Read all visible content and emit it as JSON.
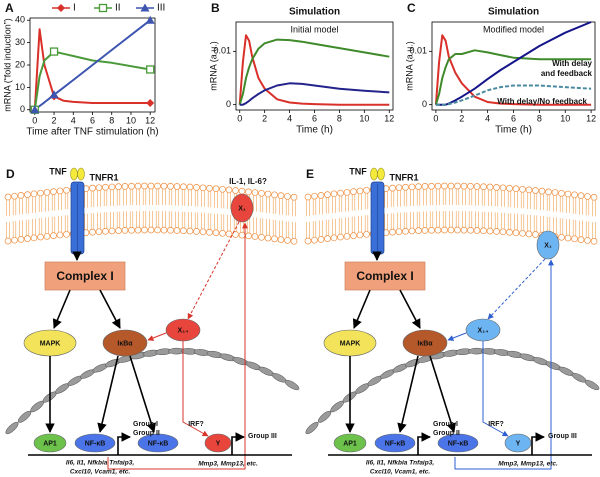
{
  "chart_data": [
    {
      "type": "line",
      "panel": "A",
      "ylabel": "mRNA (“fold induction”)",
      "xlabel": "Time after TNF stimulation (h)",
      "x": [
        0,
        0.5,
        1,
        2,
        3,
        4,
        6,
        8,
        12
      ],
      "series": [
        {
          "name": "I",
          "color": "#d9302a",
          "marker": "diamond",
          "values": [
            0,
            36,
            20,
            6,
            4,
            3.5,
            3,
            3,
            3
          ]
        },
        {
          "name": "II",
          "color": "#4a9a3a",
          "marker": "square-open",
          "values": [
            0,
            15,
            22,
            26,
            25,
            24,
            22,
            21,
            18
          ]
        },
        {
          "name": "III",
          "color": "#3d55b0",
          "marker": "triangle",
          "values": [
            0,
            1.7,
            3.3,
            6.7,
            10,
            13.3,
            20,
            26.7,
            40
          ]
        }
      ],
      "xlim": [
        -0.5,
        12.5
      ],
      "xticks": [
        0,
        2,
        4,
        6,
        8,
        10,
        12
      ],
      "ylim": [
        -1,
        41
      ],
      "yticks": [
        0,
        10,
        20,
        30,
        40
      ]
    },
    {
      "type": "line",
      "panel": "B",
      "title": "Simulation",
      "subtitle": "Initial model",
      "ylabel": "mRNA (a.u.)",
      "xlabel": "Time (h)",
      "x": [
        0,
        0.25,
        0.5,
        0.75,
        1,
        1.5,
        2,
        3,
        4,
        5,
        6,
        8,
        10,
        12
      ],
      "series": [
        {
          "color": "#d9302a",
          "values": [
            0,
            0.008,
            0.013,
            0.012,
            0.009,
            0.005,
            0.003,
            0.001,
            0.0004,
            0.0002,
            0.0001,
            0,
            0,
            0
          ]
        },
        {
          "color": "#3f8a2a",
          "values": [
            0,
            0.002,
            0.005,
            0.007,
            0.0085,
            0.0105,
            0.0115,
            0.0122,
            0.0121,
            0.0118,
            0.0114,
            0.0106,
            0.0098,
            0.009
          ]
        },
        {
          "color": "#23238c",
          "values": [
            0,
            0,
            0.0003,
            0.0007,
            0.0012,
            0.002,
            0.0027,
            0.0036,
            0.004,
            0.0039,
            0.0036,
            0.003,
            0.0026,
            0.0023
          ]
        }
      ],
      "xlim": [
        -0.3,
        12.3
      ],
      "xticks": [
        0,
        2,
        4,
        6,
        8,
        10,
        12
      ],
      "ylim": [
        -0.001,
        0.0155
      ],
      "yticks": [
        0,
        0.01
      ]
    },
    {
      "type": "line",
      "panel": "C",
      "title": "Simulation",
      "subtitle": "Modified model",
      "ylabel": "mRNA (a.u.)",
      "xlabel": "Time (h)",
      "x": [
        0,
        0.25,
        0.5,
        0.75,
        1,
        1.5,
        2,
        3,
        4,
        5,
        6,
        8,
        10,
        12
      ],
      "series": [
        {
          "color": "#d9302a",
          "values": [
            0,
            0.008,
            0.013,
            0.012,
            0.009,
            0.006,
            0.004,
            0.0015,
            0.0005,
            0.0002,
            0.0001,
            0,
            0,
            0
          ]
        },
        {
          "color": "#3f8a2a",
          "values": [
            0,
            0.002,
            0.005,
            0.007,
            0.0085,
            0.0095,
            0.0095,
            0.0102,
            0.0098,
            0.0093,
            0.0088,
            0.0085,
            0.0085,
            0.0085
          ]
        },
        {
          "color": "#15158a",
          "values": [
            0,
            0,
            0,
            0,
            0.0002,
            0.0008,
            0.0015,
            0.003,
            0.0048,
            0.0065,
            0.008,
            0.011,
            0.0135,
            0.0155
          ]
        },
        {
          "color": "#4a8aa0",
          "dashed": true,
          "values": [
            0,
            0,
            0,
            0,
            0.0001,
            0.0004,
            0.0008,
            0.0017,
            0.0027,
            0.0033,
            0.0036,
            0.0036,
            0.0033,
            0.003
          ]
        }
      ],
      "annotations": [
        {
          "text": "With delay",
          "color": "#15158a"
        },
        {
          "text": "and feedback",
          "color": "#15158a"
        },
        {
          "text": "With delay/No feedback",
          "color": "#4a8aa0"
        }
      ],
      "xlim": [
        -0.3,
        12.3
      ],
      "xticks": [
        0,
        2,
        4,
        6,
        8,
        10,
        12
      ],
      "ylim": [
        -0.001,
        0.0155
      ],
      "yticks": [
        0,
        0.01
      ]
    }
  ],
  "diagrams": [
    {
      "panel": "D",
      "accent": "#d9342b",
      "node_fill": "#e8453c",
      "labels": {
        "tnf": "TNF",
        "receptor": "TNFR1",
        "secreted": "IL-1, IL-6?",
        "x1": "X₁",
        "complex": "Complex I",
        "mapk": "MAPK",
        "ikba": "IκBα",
        "x14": "X₁₄",
        "ap1": "AP1",
        "nfkb1": "NF-κB",
        "nfkb2": "NF-κB",
        "y": "Y",
        "irf": "IRF?",
        "group1": "Group I",
        "group2": "Group II",
        "group3": "Group III",
        "genes1a": "Il6, Il1, Nfkbia Tnfaip3,",
        "genes1b": "Cxcl10, Vcam1, etc.",
        "genes3": "Mmp3, Mmp13, etc."
      }
    },
    {
      "panel": "E",
      "accent": "#2f5fd0",
      "node_fill": "#6db4f2",
      "labels": {
        "tnf": "TNF",
        "receptor": "TNFR1",
        "x1": "X₁",
        "complex": "Complex I",
        "mapk": "MAPK",
        "ikba": "IκBα",
        "x14": "X₁₄",
        "ap1": "AP1",
        "nfkb1": "NF-κB",
        "nfkb2": "NF-κB",
        "y": "Y",
        "irf": "IRF?",
        "group1": "Group I",
        "group2": "Group II",
        "group3": "Group III",
        "genes1a": "Il6, Il1, Nfkbia Tnfaip3,",
        "genes1b": "Cxcl10, Vcam1, etc.",
        "genes3": "Mmp3, Mmp13, etc."
      }
    }
  ]
}
